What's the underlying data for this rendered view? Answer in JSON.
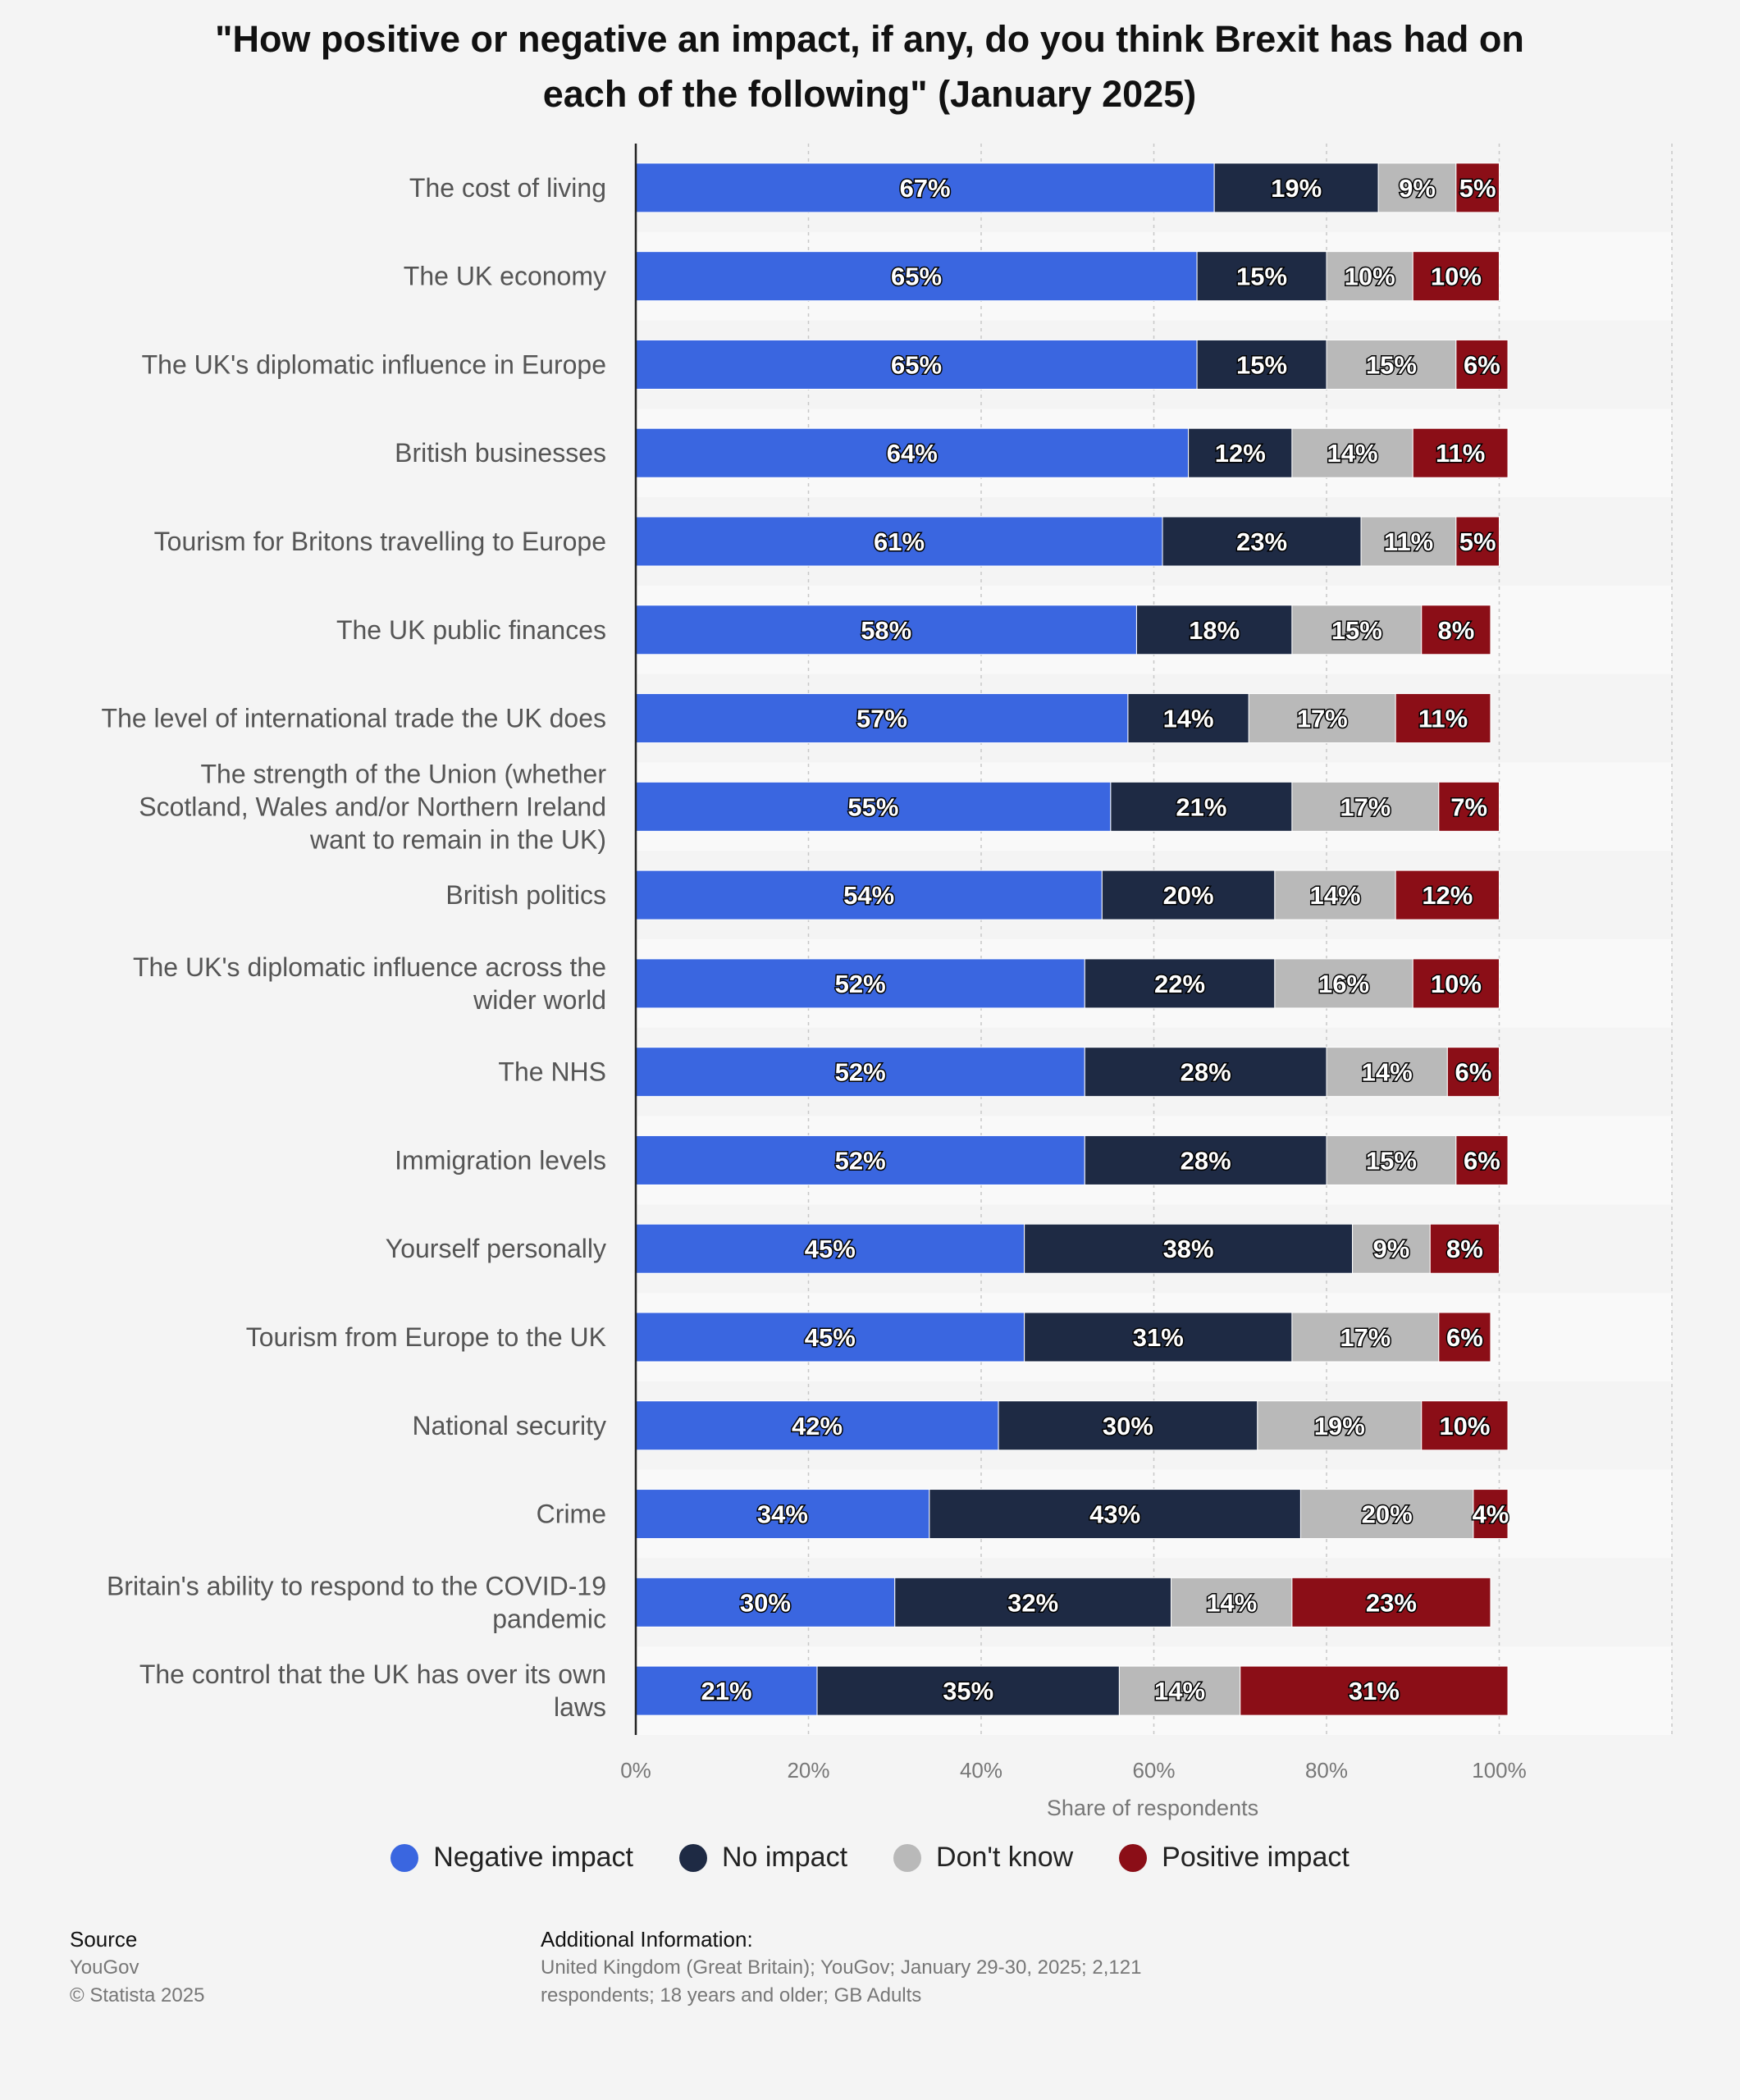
{
  "chart_data": {
    "type": "bar",
    "orientation": "horizontal",
    "stacked": true,
    "title": "\"How positive or negative an impact, if any, do you think Brexit has had on each of the following\" (January 2025)",
    "xlabel": "Share of respondents",
    "ylabel": "",
    "xlim": [
      0,
      120
    ],
    "x_ticks": [
      "0%",
      "20%",
      "40%",
      "60%",
      "80%",
      "100%"
    ],
    "grid": true,
    "legend_position": "bottom",
    "categories": [
      "The cost of living",
      "The UK economy",
      "The UK's diplomatic influence in Europe",
      "British businesses",
      "Tourism for Britons travelling to Europe",
      "The UK public finances",
      "The level of international trade the UK does",
      "The strength of the Union (whether Scotland, Wales and/or Northern Ireland want to remain in the UK)",
      "British politics",
      "The UK's diplomatic influence across the wider world",
      "The NHS",
      "Immigration levels",
      "Yourself personally",
      "Tourism from Europe to the UK",
      "National security",
      "Crime",
      "Britain's ability to respond to the COVID-19 pandemic",
      "The control that the UK has over its own laws"
    ],
    "category_lines": [
      [
        "The cost of living"
      ],
      [
        "The UK economy"
      ],
      [
        "The UK's diplomatic influence in Europe"
      ],
      [
        "British businesses"
      ],
      [
        "Tourism for Britons travelling to Europe"
      ],
      [
        "The UK public finances"
      ],
      [
        "The level of international trade the UK does"
      ],
      [
        "The strength of the Union (whether",
        "Scotland, Wales and/or Northern Ireland",
        "want to remain in the UK)"
      ],
      [
        "British politics"
      ],
      [
        "The UK's diplomatic influence across the",
        "wider world"
      ],
      [
        "The NHS"
      ],
      [
        "Immigration levels"
      ],
      [
        "Yourself personally"
      ],
      [
        "Tourism from Europe to the UK"
      ],
      [
        "National security"
      ],
      [
        "Crime"
      ],
      [
        "Britain's ability to respond to the COVID-19",
        "pandemic"
      ],
      [
        "The control that the UK has over its own",
        "laws"
      ]
    ],
    "series": [
      {
        "name": "Negative impact",
        "color": "#3a66e0",
        "values": [
          67,
          65,
          65,
          64,
          61,
          58,
          57,
          55,
          54,
          52,
          52,
          52,
          45,
          45,
          42,
          34,
          30,
          21
        ]
      },
      {
        "name": "No impact",
        "color": "#1e2a44",
        "values": [
          19,
          15,
          15,
          12,
          23,
          18,
          14,
          21,
          20,
          22,
          28,
          28,
          38,
          31,
          30,
          43,
          32,
          35
        ]
      },
      {
        "name": "Don't know",
        "color": "#b9b9b9",
        "values": [
          9,
          10,
          15,
          14,
          11,
          15,
          17,
          17,
          14,
          16,
          14,
          15,
          9,
          17,
          19,
          20,
          14,
          14
        ]
      },
      {
        "name": "Positive impact",
        "color": "#8b0e17",
        "values": [
          5,
          10,
          6,
          11,
          5,
          8,
          11,
          7,
          12,
          10,
          6,
          6,
          8,
          6,
          10,
          4,
          23,
          31
        ]
      }
    ],
    "value_suffix": "%"
  },
  "footer": {
    "source_heading": "Source",
    "source_name": "YouGov",
    "copyright": "© Statista 2025",
    "info_heading": "Additional Information:",
    "info_line1": "United Kingdom (Great Britain); YouGov; January 29-30, 2025; 2,121",
    "info_line2": "respondents; 18 years and older; GB Adults"
  }
}
